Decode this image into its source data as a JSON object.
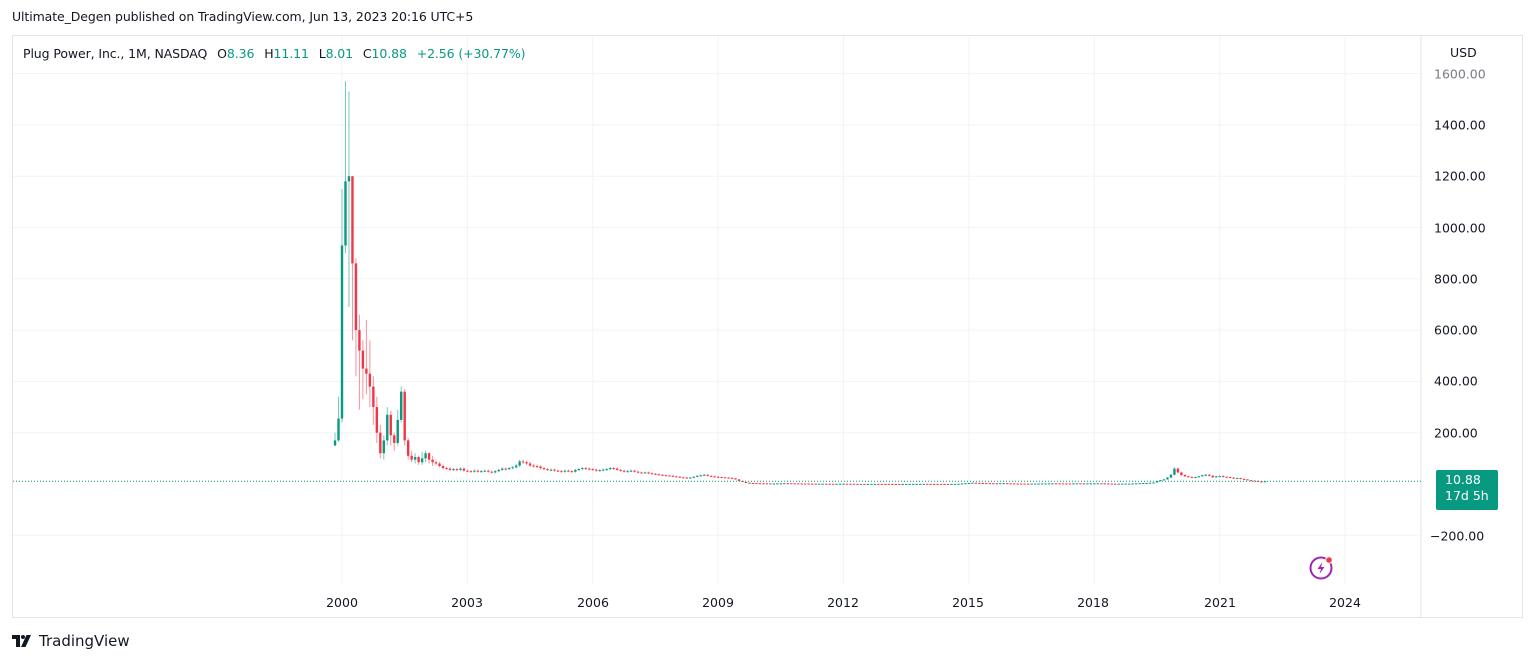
{
  "header": {
    "published_line": "Ultimate_Degen published on TradingView.com, Jun 13, 2023 20:16 UTC+5"
  },
  "legend": {
    "symbol": "Plug Power, Inc., 1M, NASDAQ",
    "open_label": "O",
    "open": "8.36",
    "high_label": "H",
    "high": "11.11",
    "low_label": "L",
    "low": "8.01",
    "close_label": "C",
    "close": "10.88",
    "change": "+2.56 (+30.77%)"
  },
  "price_axis": {
    "currency": "USD",
    "ticks": [
      "1600.00",
      "1400.00",
      "1200.00",
      "1000.00",
      "800.00",
      "600.00",
      "400.00",
      "200.00",
      "−200.00"
    ],
    "last_price": "10.88",
    "countdown": "17d 5h"
  },
  "time_axis": {
    "ticks": [
      "2000",
      "2003",
      "2006",
      "2009",
      "2012",
      "2015",
      "2018",
      "2021",
      "2024"
    ]
  },
  "footer": {
    "brand": "TradingView"
  },
  "icons": {
    "brand_logo": "tradingview-logo-icon",
    "flash": "lightning-bolt-icon"
  },
  "colors": {
    "up": "#089981",
    "down": "#f23645",
    "grid": "#f0f3fa",
    "border": "#e0e3eb",
    "badge": "#9c27b0"
  },
  "chart_data": {
    "type": "candlestick",
    "title": "Plug Power, Inc., 1M, NASDAQ",
    "xlabel": "",
    "ylabel": "USD",
    "ylim": [
      -300,
      1650
    ],
    "grid": true,
    "x_ticks": [
      2000,
      2003,
      2006,
      2009,
      2012,
      2015,
      2018,
      2021,
      2024
    ],
    "y_ticks": [
      -200,
      0,
      200,
      400,
      600,
      800,
      1000,
      1200,
      1400,
      1600
    ],
    "last": {
      "open": 8.36,
      "high": 11.11,
      "low": 8.01,
      "close": 10.88,
      "change": 2.56,
      "change_pct": 30.77
    },
    "start": "1999-11",
    "ohlc_early": [
      [
        150,
        200,
        148,
        170
      ],
      [
        170,
        340,
        165,
        255
      ],
      [
        255,
        1150,
        240,
        930
      ],
      [
        930,
        1570,
        900,
        1180
      ],
      [
        1180,
        1530,
        690,
        1200
      ],
      [
        1200,
        1100,
        560,
        860
      ],
      [
        860,
        880,
        420,
        600
      ],
      [
        600,
        660,
        290,
        520
      ],
      [
        520,
        560,
        330,
        450
      ],
      [
        450,
        640,
        350,
        430
      ],
      [
        430,
        560,
        300,
        380
      ],
      [
        380,
        420,
        230,
        300
      ],
      [
        300,
        340,
        160,
        200
      ],
      [
        200,
        230,
        100,
        120
      ],
      [
        120,
        190,
        95,
        170
      ],
      [
        170,
        300,
        150,
        270
      ],
      [
        270,
        285,
        150,
        190
      ],
      [
        190,
        200,
        130,
        160
      ],
      [
        160,
        290,
        150,
        250
      ],
      [
        250,
        380,
        240,
        360
      ],
      [
        360,
        370,
        150,
        170
      ],
      [
        170,
        180,
        95,
        110
      ],
      [
        110,
        130,
        85,
        95
      ],
      [
        95,
        120,
        80,
        105
      ],
      [
        105,
        110,
        75,
        85
      ],
      [
        85,
        125,
        75,
        100
      ],
      [
        100,
        130,
        85,
        120
      ],
      [
        120,
        125,
        80,
        95
      ],
      [
        95,
        110,
        70,
        85
      ]
    ],
    "closes_after": [
      80,
      70,
      62,
      60,
      55,
      58,
      55,
      60,
      52,
      50,
      48,
      52,
      48,
      50,
      52,
      48,
      45,
      50,
      55,
      60,
      58,
      62,
      65,
      72,
      88,
      85,
      80,
      72,
      70,
      68,
      62,
      58,
      55,
      56,
      52,
      50,
      48,
      52,
      50,
      48,
      55,
      58,
      62,
      60,
      58,
      56,
      52,
      54,
      56,
      58,
      62,
      60,
      55,
      52,
      48,
      50,
      52,
      48,
      45,
      44,
      45,
      42,
      40,
      38,
      36,
      34,
      33,
      32,
      30,
      28,
      26,
      25,
      24,
      25,
      28,
      32,
      34,
      36,
      32,
      30,
      28,
      27,
      26,
      25,
      24,
      22,
      18,
      12,
      8,
      5,
      4,
      3.5,
      3,
      2.8,
      2.5,
      2.2,
      2,
      2,
      2.2,
      2.5,
      3,
      2.8,
      2.6,
      2.4,
      2.2,
      2,
      1.8,
      1.5,
      1.2,
      1,
      1.1,
      1.2,
      1,
      0.9,
      0.8,
      0.9,
      1,
      1.1,
      0.9,
      0.8,
      0.6,
      0.5,
      0.5,
      0.4,
      0.45,
      0.5,
      0.55,
      0.5,
      0.45,
      0.4,
      0.38,
      0.35,
      0.3,
      0.28,
      0.3,
      0.32,
      0.35,
      0.4,
      0.45,
      0.5,
      0.55,
      0.5,
      0.45,
      0.42,
      0.4,
      0.38,
      0.36,
      0.35,
      0.4,
      0.5,
      1,
      2,
      3,
      4,
      5,
      4.5,
      4,
      3.5,
      3.2,
      3,
      2.8,
      2.5,
      3,
      3.2,
      2.5,
      2.2,
      2,
      1.8,
      1.6,
      1.5,
      1.4,
      1.5,
      1.6,
      1.8,
      2,
      2.2,
      2.4,
      2.6,
      2.5,
      2.3,
      2.2,
      2.1,
      2,
      2.2,
      2.5,
      2.4,
      2.2,
      2.3,
      2.5,
      2.6,
      2.8,
      2.5,
      2.2,
      1.5,
      1.3,
      1.2,
      1.3,
      1.4,
      1.5,
      1.6,
      2,
      2.5,
      3,
      3.5,
      4,
      5,
      6,
      12,
      15,
      18,
      25,
      36,
      60,
      45,
      35,
      30,
      28,
      25,
      27,
      30,
      34,
      36,
      32,
      26,
      30,
      31,
      28,
      27,
      25,
      22,
      23,
      20,
      18,
      15,
      13,
      12,
      10,
      8.36,
      10.88
    ]
  }
}
